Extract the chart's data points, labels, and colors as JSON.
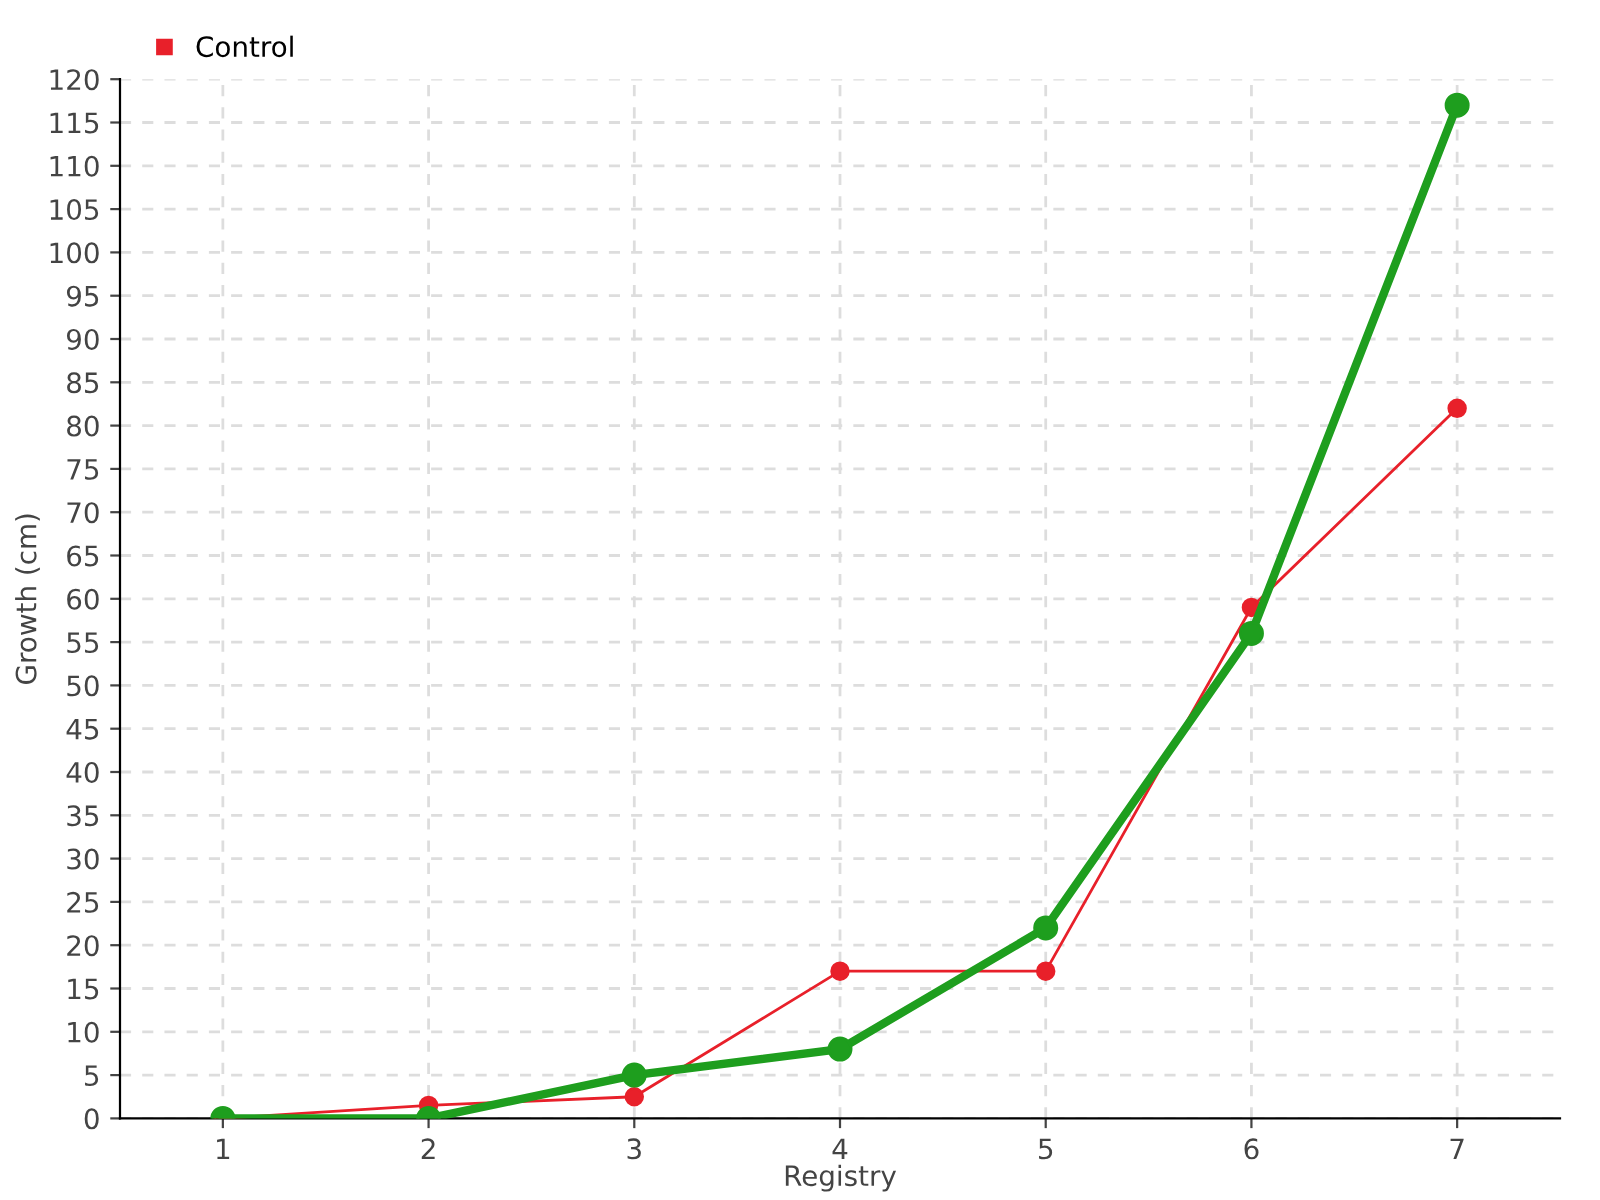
{
  "chart_data": {
    "type": "line",
    "xlabel": "Registry",
    "ylabel": "Growth (cm)",
    "x": [
      1,
      2,
      3,
      4,
      5,
      6,
      7
    ],
    "series": [
      {
        "color": "#1e9e1e",
        "values": [
          0,
          0,
          5,
          8,
          22,
          56,
          117
        ]
      },
      {
        "name": "Control",
        "color": "#e8202a",
        "values": [
          0,
          1.5,
          2.5,
          17,
          17,
          59,
          82
        ]
      }
    ],
    "xlim": [
      0.5,
      7.5
    ],
    "xticks": [
      1,
      2,
      3,
      4,
      5,
      6,
      7
    ],
    "ylim": [
      0,
      120
    ],
    "yticks": [
      0,
      5,
      10,
      15,
      20,
      25,
      30,
      35,
      40,
      45,
      50,
      55,
      60,
      65,
      70,
      75,
      80,
      85,
      90,
      95,
      100,
      105,
      110,
      115,
      120
    ],
    "grid": true,
    "legend": "top left",
    "marker": "circle",
    "line_style": "solid"
  }
}
